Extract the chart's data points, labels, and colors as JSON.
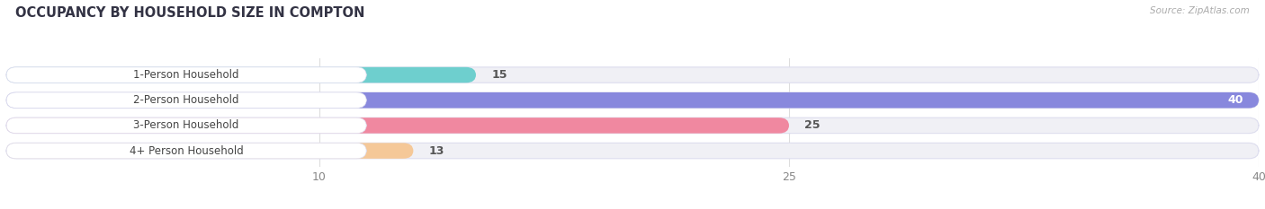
{
  "title": "OCCUPANCY BY HOUSEHOLD SIZE IN COMPTON",
  "source": "Source: ZipAtlas.com",
  "categories": [
    "1-Person Household",
    "2-Person Household",
    "3-Person Household",
    "4+ Person Household"
  ],
  "values": [
    15,
    40,
    25,
    13
  ],
  "bar_colors": [
    "#6ecfce",
    "#8888dd",
    "#f088a0",
    "#f5c898"
  ],
  "background_color": "#ffffff",
  "bar_bg_color": "#f0f0f5",
  "bar_bg_edge_color": "#ddddee",
  "xlim": [
    0,
    40
  ],
  "xticks": [
    10,
    25,
    40
  ],
  "bar_height": 0.62,
  "label_pill_color": "#ffffff",
  "label_pill_edge": "#ddddee",
  "label_text_color": "#444444",
  "value_color_inside": "#ffffff",
  "value_color_outside": "#555555",
  "grid_color": "#dddddd",
  "tick_color": "#888888",
  "title_color": "#333344",
  "source_color": "#aaaaaa",
  "figsize": [
    14.06,
    2.33
  ],
  "dpi": 100
}
